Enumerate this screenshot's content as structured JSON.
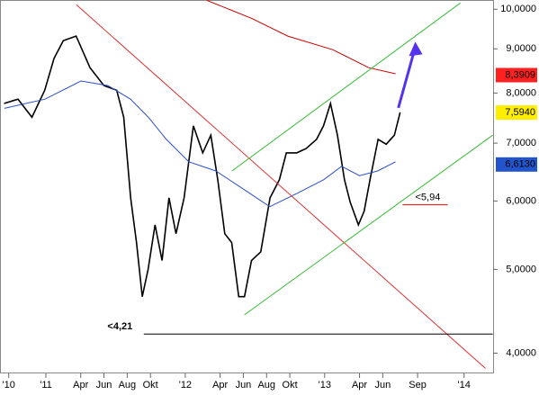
{
  "chart_data": {
    "type": "line",
    "log_y": true,
    "xlim": [
      -3.95,
      38.5
    ],
    "ylim": [
      3.79,
      10.25
    ],
    "xticks": [
      {
        "value": -3.2,
        "label": "'10"
      },
      {
        "value": 0,
        "label": "'11"
      },
      {
        "value": 3,
        "label": "Apr"
      },
      {
        "value": 5,
        "label": "Jun"
      },
      {
        "value": 7,
        "label": "Aug"
      },
      {
        "value": 9,
        "label": "Okt"
      },
      {
        "value": 12,
        "label": "'12"
      },
      {
        "value": 15,
        "label": "Apr"
      },
      {
        "value": 17,
        "label": "Jun"
      },
      {
        "value": 19,
        "label": "Aug"
      },
      {
        "value": 21,
        "label": "Okt"
      },
      {
        "value": 24,
        "label": "'13"
      },
      {
        "value": 27,
        "label": "Apr"
      },
      {
        "value": 29,
        "label": "Jun"
      },
      {
        "value": 32,
        "label": "Sep"
      },
      {
        "value": 36,
        "label": "'14"
      }
    ],
    "yticks": [
      {
        "value": 4,
        "label": "4,0000"
      },
      {
        "value": 5,
        "label": "5,0000"
      },
      {
        "value": 6,
        "label": "6,0000"
      },
      {
        "value": 7,
        "label": "7,0000"
      },
      {
        "value": 8,
        "label": "8,0000"
      },
      {
        "value": 9,
        "label": "9,0000"
      },
      {
        "value": 10,
        "label": "10,0000"
      }
    ],
    "series": [
      {
        "color": "#000000",
        "x": [
          -3.6,
          -2.4,
          -1.2,
          -0.1,
          0.7,
          1.5,
          2.6,
          3.8,
          5.0,
          6.1,
          6.7,
          7.3,
          7.8,
          8.3,
          8.8,
          9.4,
          10.0,
          10.6,
          11.2,
          11.9,
          12.7,
          13.5,
          14.2,
          14.8,
          15.4,
          16.0,
          16.6,
          17.1,
          17.7,
          18.5,
          19.3,
          20.1,
          20.7,
          21.6,
          22.4,
          23.3,
          23.9,
          24.5,
          25.1,
          25.7,
          26.2,
          26.9,
          27.4,
          27.9,
          28.6,
          29.3,
          30.0,
          30.5
        ],
        "values": [
          7.78,
          7.87,
          7.5,
          8.06,
          8.77,
          9.2,
          9.31,
          8.56,
          8.16,
          8.06,
          7.5,
          6.05,
          5.37,
          4.65,
          5.0,
          5.63,
          5.12,
          6.05,
          5.5,
          6.05,
          7.33,
          6.82,
          7.15,
          6.35,
          5.5,
          5.37,
          4.65,
          4.65,
          5.12,
          5.24,
          6.05,
          6.35,
          6.82,
          6.82,
          6.9,
          7.07,
          7.33,
          7.78,
          7.15,
          6.35,
          5.98,
          5.63,
          5.84,
          6.35,
          7.07,
          6.98,
          7.15,
          7.6
        ]
      },
      {
        "color": "#2a4fc4",
        "x": [
          -3.56,
          -0.08,
          3.02,
          5.34,
          7.28,
          8.82,
          10.37,
          12.31,
          14.63,
          16.95,
          19.27,
          21.6,
          23.92,
          25.46,
          27.0,
          28.56,
          30.1
        ],
        "values": [
          7.68,
          7.87,
          8.26,
          8.16,
          7.87,
          7.5,
          7.07,
          6.66,
          6.5,
          6.2,
          5.91,
          6.12,
          6.35,
          6.58,
          6.42,
          6.5,
          6.66
        ]
      },
      {
        "color": "#cc0000",
        "x": [
          13.85,
          17.72,
          20.82,
          24.69,
          27.79,
          30.1
        ],
        "values": [
          10.24,
          9.76,
          9.31,
          8.98,
          8.56,
          8.42
        ]
      },
      {
        "color": "#e03030",
        "x": [
          2.63,
          37.85
        ],
        "values": [
          10.12,
          3.84
        ]
      },
      {
        "color": "#33bb33",
        "x": [
          16.02,
          35.68
        ],
        "values": [
          6.5,
          10.17
        ]
      },
      {
        "color": "#33bb33",
        "x": [
          17.1,
          38.47
        ],
        "values": [
          4.43,
          7.15
        ]
      },
      {
        "color": "#000000",
        "x": [
          8.43,
          38.47
        ],
        "values": [
          4.21,
          4.21
        ]
      },
      {
        "color": "#ee0000",
        "x": [
          30.7,
          34.6
        ],
        "values": [
          5.94,
          5.94
        ]
      },
      {
        "color": "#5533ee",
        "x": [
          30.34,
          31.8
        ],
        "values": [
          7.69,
          9.04
        ]
      }
    ],
    "price_labels": [
      {
        "value": 8.3909,
        "label": "8,3909",
        "color": "#ff2020",
        "text_color": "#ffffff"
      },
      {
        "value": 7.594,
        "label": "7,5940",
        "color": "#ffee00",
        "text_color": "#000000"
      },
      {
        "value": 6.613,
        "label": "6,6130",
        "color": "#2255cc",
        "text_color": "#ffffff"
      }
    ],
    "annotations": [
      {
        "label": "<4,21",
        "value": 4.21,
        "x": 5.3,
        "color": "#ee0000"
      },
      {
        "label": "<5,94",
        "value": 5.94,
        "x": 31.8,
        "color": "#ee0000"
      }
    ]
  }
}
